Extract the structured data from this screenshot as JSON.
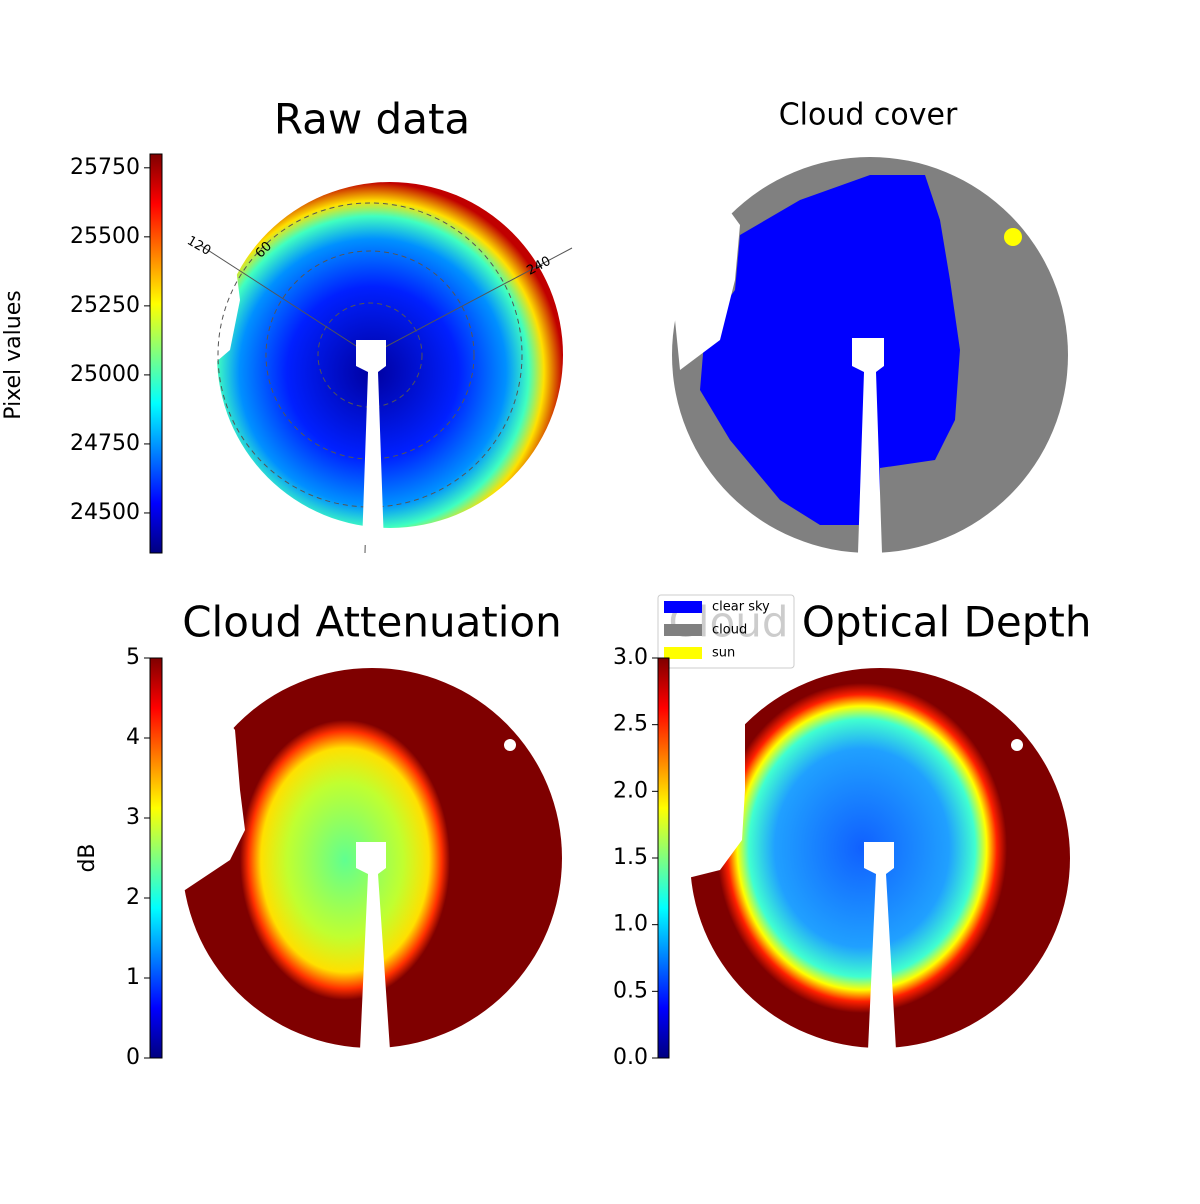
{
  "chart_data": [
    {
      "type": "image",
      "title": "Raw data",
      "colorbar_label": "Pixel values",
      "colormap": "jet",
      "clim": [
        24355,
        25800
      ],
      "cticks": [
        24500,
        24750,
        25000,
        25250,
        25500,
        25750
      ],
      "annotations": [
        "120",
        "60",
        "240"
      ]
    },
    {
      "type": "image",
      "title": "Cloud cover",
      "legend": [
        {
          "name": "clear sky",
          "color": "#0000ff"
        },
        {
          "name": "cloud",
          "color": "#808080"
        },
        {
          "name": "sun",
          "color": "#ffff00"
        }
      ]
    },
    {
      "type": "image",
      "title": "Cloud Attenuation",
      "colorbar_label": "dB",
      "colormap": "jet",
      "clim": [
        0,
        5
      ],
      "cticks": [
        0,
        1,
        2,
        3,
        4,
        5
      ]
    },
    {
      "type": "image",
      "title": "Cloud Optical Depth",
      "colormap": "jet",
      "clim": [
        0,
        3
      ],
      "cticks": [
        {
          "value": 0,
          "label": "0.0"
        },
        {
          "value": 0.5,
          "label": "0.5"
        },
        {
          "value": 1,
          "label": "1.0"
        },
        {
          "value": 1.5,
          "label": "1.5"
        },
        {
          "value": 2,
          "label": "2.0"
        },
        {
          "value": 2.5,
          "label": "2.5"
        },
        {
          "value": 3,
          "label": "3.0"
        }
      ]
    }
  ]
}
